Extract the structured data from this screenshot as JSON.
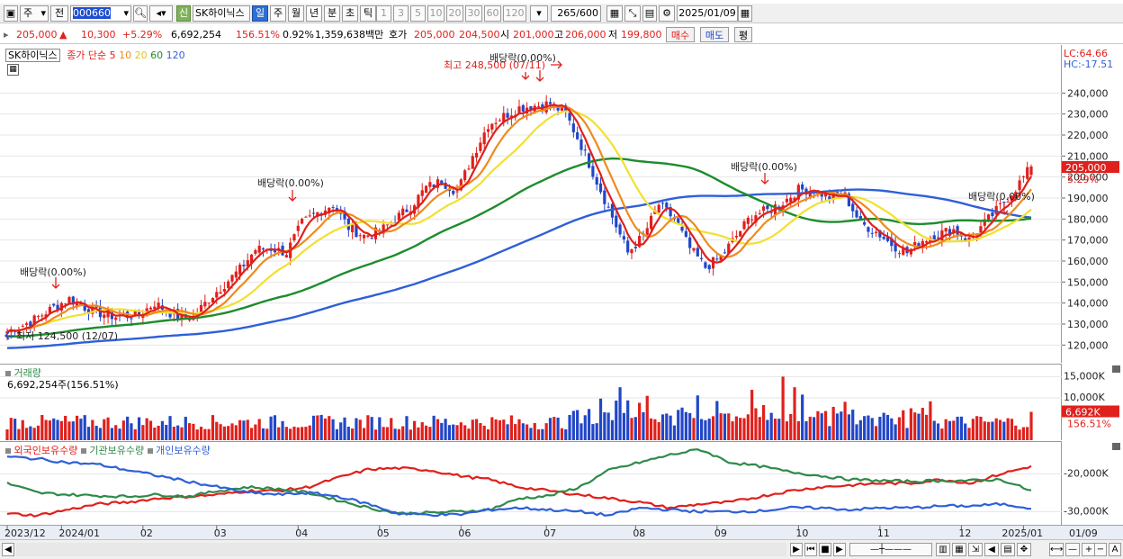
{
  "toolbar": {
    "market": "주",
    "prefix": "전",
    "code": "000660",
    "sign_badge": "신",
    "name": "SK하이닉스",
    "periods": [
      "일",
      "주",
      "월",
      "년",
      "분",
      "초",
      "틱"
    ],
    "active_period": "일",
    "intervals": [
      "1",
      "3",
      "5",
      "10",
      "20",
      "30",
      "60",
      "120"
    ],
    "count": "265",
    "count_total": "/600",
    "date": "2025/01/09"
  },
  "info": {
    "price": "205,000",
    "change_arrow": "▲",
    "change": "10,300",
    "change_pct": "+5.29%",
    "volume": "6,692,254",
    "volume_ratio": "156.51%",
    "turnover": "0.92%",
    "amount": "1,359,638백만",
    "bid_label": "호가",
    "bid": "205,000",
    "ask": "204,500",
    "open_label": "시",
    "open": "201,000",
    "high_label": "고",
    "high": "206,000",
    "low_label": "저",
    "low": "199,800",
    "buy_btn": "매수",
    "sell_btn": "매도",
    "eval_btn": "평"
  },
  "price_legend": {
    "name": "SK하이닉스",
    "ma_label": "종가 단순",
    "ma_periods": [
      "5",
      "10",
      "20",
      "60",
      "120"
    ]
  },
  "lc_hc": {
    "lc": "LC:64.66",
    "hc": "HC:-17.51"
  },
  "price_tag": {
    "value": "205,000",
    "pct": "5.29%"
  },
  "annotations": {
    "high": "최고 248,500 (07/11)",
    "low": "최저 124,500 (12/07)",
    "dividends": [
      "배당락(0.00%)",
      "배당락(0.00%)",
      "배당락(0.00%)",
      "배당락(0.00%)",
      "배당락(0.00%)"
    ]
  },
  "volume_panel": {
    "title": "거래량",
    "value": "6,692,254주(156.51%)",
    "tag": "6,692K",
    "tag_pct": "156.51%"
  },
  "holding_panel": {
    "legends": [
      "외국인보유수량",
      "기관보유수량",
      "개인보유수량"
    ]
  },
  "x_axis": {
    "labels": [
      "2023/12",
      "2024/01",
      "02",
      "03",
      "04",
      "05",
      "06",
      "07",
      "08",
      "09",
      "10",
      "11",
      "12",
      "2025/01"
    ],
    "right_label": "01/09"
  },
  "colors": {
    "up": "#e0201c",
    "down": "#2146c7",
    "ma5": "#e0201c",
    "ma10": "#f08a1c",
    "ma20": "#f2e030",
    "ma60": "#1e8c2c",
    "ma120": "#2f5fd8",
    "foreign": "#e0201c",
    "inst": "#2f8a4a",
    "indiv": "#2f5fd8"
  },
  "chart_data": [
    {
      "type": "candlestick",
      "title": "SK하이닉스",
      "ylim": [
        115000,
        250000
      ],
      "yticks": [
        120000,
        130000,
        140000,
        150000,
        160000,
        170000,
        180000,
        190000,
        200000,
        210000,
        220000,
        230000,
        240000
      ],
      "ytick_labels": [
        "120,000",
        "130,000",
        "140,000",
        "150,000",
        "160,000",
        "170,000",
        "180,000",
        "190,000",
        "200,000",
        "210,000",
        "220,000",
        "230,000",
        "240,000"
      ],
      "close_anchors": [
        [
          0,
          126500
        ],
        [
          6,
          131000
        ],
        [
          12,
          138000
        ],
        [
          16,
          142000
        ],
        [
          22,
          136000
        ],
        [
          28,
          133500
        ],
        [
          34,
          134500
        ],
        [
          38,
          140000
        ],
        [
          44,
          133000
        ],
        [
          48,
          133500
        ],
        [
          52,
          142000
        ],
        [
          56,
          149000
        ],
        [
          60,
          156000
        ],
        [
          64,
          165500
        ],
        [
          68,
          166000
        ],
        [
          72,
          164000
        ],
        [
          76,
          178000
        ],
        [
          80,
          183000
        ],
        [
          84,
          187000
        ],
        [
          88,
          176000
        ],
        [
          92,
          172000
        ],
        [
          96,
          174000
        ],
        [
          100,
          180000
        ],
        [
          104,
          186000
        ],
        [
          108,
          195000
        ],
        [
          112,
          198000
        ],
        [
          116,
          193000
        ],
        [
          120,
          210000
        ],
        [
          124,
          225000
        ],
        [
          128,
          229000
        ],
        [
          132,
          233000
        ],
        [
          136,
          234000
        ],
        [
          140,
          235000
        ],
        [
          144,
          230000
        ],
        [
          148,
          215000
        ],
        [
          152,
          198000
        ],
        [
          156,
          181000
        ],
        [
          160,
          164000
        ],
        [
          164,
          172000
        ],
        [
          168,
          187000
        ],
        [
          172,
          180000
        ],
        [
          176,
          166000
        ],
        [
          180,
          157000
        ],
        [
          184,
          162000
        ],
        [
          188,
          172000
        ],
        [
          192,
          182000
        ],
        [
          196,
          184000
        ],
        [
          200,
          188000
        ],
        [
          204,
          194000
        ],
        [
          208,
          194000
        ],
        [
          212,
          190000
        ],
        [
          216,
          191000
        ],
        [
          220,
          178000
        ],
        [
          224,
          174000
        ],
        [
          228,
          168000
        ],
        [
          232,
          164000
        ],
        [
          236,
          170000
        ],
        [
          240,
          173000
        ],
        [
          244,
          175000
        ],
        [
          248,
          170000
        ],
        [
          252,
          178000
        ],
        [
          256,
          186000
        ],
        [
          260,
          194700
        ],
        [
          264,
          205000
        ]
      ],
      "ma_periods": [
        5,
        10,
        20,
        60,
        120
      ]
    },
    {
      "type": "bar",
      "title": "거래량",
      "ylim": [
        0,
        17000000
      ],
      "yticks": [
        10000000,
        15000000
      ],
      "ytick_labels": [
        "10,000K",
        "15,000K"
      ],
      "last_value": 6692254
    },
    {
      "type": "line",
      "series": [
        {
          "name": "외국인보유수량",
          "values": [
            -30500,
            -31000,
            -29500,
            -28000,
            -27500,
            -26500,
            -26000,
            -25500,
            -24500,
            -24500,
            -23500,
            -21000,
            -18800,
            -18500,
            -19000,
            -20500,
            -21500,
            -23500,
            -24500,
            -25500,
            -26500,
            -27500,
            -29000,
            -28000,
            -27500,
            -26000,
            -24500,
            -23500,
            -23000,
            -22500,
            -22500,
            -21500,
            -22500,
            -20000,
            -18000
          ]
        },
        {
          "name": "기관보유수량",
          "values": [
            -22500,
            -25000,
            -25500,
            -25800,
            -26000,
            -25500,
            -26000,
            -24500,
            -23500,
            -24000,
            -25000,
            -27000,
            -29000,
            -30500,
            -30300,
            -30000,
            -29500,
            -26500,
            -25800,
            -23500,
            -19000,
            -17000,
            -15000,
            -13500,
            -17000,
            -18000,
            -19500,
            -20500,
            -21500,
            -21800,
            -22000,
            -21800,
            -21800,
            -21500,
            -24500
          ]
        },
        {
          "name": "개인보유수량",
          "values": [
            -15500,
            -16000,
            -17000,
            -17500,
            -19000,
            -20500,
            -22000,
            -23500,
            -25000,
            -25500,
            -25000,
            -26000,
            -28000,
            -30500,
            -30800,
            -30800,
            -29500,
            -29000,
            -29500,
            -30000,
            -31000,
            -29000,
            -29500,
            -30000,
            -30000,
            -29800,
            -29000,
            -29000,
            -29500,
            -29000,
            -29000,
            -28500,
            -28500,
            -28000,
            -29000
          ]
        }
      ],
      "ylim": [
        -33000,
        -13000
      ],
      "yticks": [
        -20000,
        -30000
      ],
      "ytick_labels": [
        "-20,000K",
        "-30,000K"
      ]
    }
  ]
}
